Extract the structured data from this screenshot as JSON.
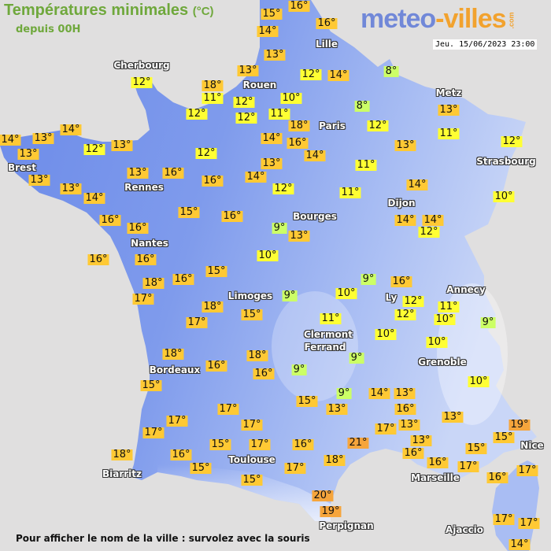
{
  "header": {
    "title": "Températures minimales",
    "unit": "(°C)",
    "subtitle": "depuis 00H",
    "datetime": "Jeu. 15/06/2023 23:00"
  },
  "logo": {
    "part1": "meteo",
    "part2": "-villes",
    "part3": ".com"
  },
  "footer": {
    "hint": "Pour afficher le nom de la ville : survolez avec la souris"
  },
  "legend_colors": {
    "8-9": "#ccff66",
    "10-12": "#ffff33",
    "13-18": "#ffc934",
    "19-21": "#f6a53c"
  },
  "map_colors": {
    "land_west": "#6b8ae9",
    "land_east": "#b4c6f5",
    "sea": "#e0dfdf"
  },
  "cities": [
    "Cherbourg",
    "Lille",
    "Rouen",
    "Paris",
    "Metz",
    "Strasbourg",
    "Brest",
    "Rennes",
    "Bourges",
    "Dijon",
    "Nantes",
    "Limoges",
    "Annecy",
    "Ly",
    "Clermont",
    "Ferrand",
    "Grenoble",
    "Bordeaux",
    "Nice",
    "Toulouse",
    "Biarritz",
    "Marseille",
    "Perpignan",
    "Ajaccio"
  ],
  "temperatures": [
    15,
    16,
    16,
    14,
    13,
    13,
    12,
    14,
    8,
    12,
    18,
    11,
    12,
    12,
    12,
    10,
    11,
    18,
    16,
    14,
    14,
    8,
    12,
    13,
    11,
    13,
    12,
    14,
    13,
    13,
    14,
    12,
    13,
    13,
    13,
    14,
    13,
    16,
    12,
    16,
    14,
    13,
    12,
    11,
    11,
    14,
    10,
    16,
    16,
    15,
    16,
    9,
    13,
    14,
    14,
    12,
    16,
    16,
    18,
    17,
    16,
    15,
    10,
    9,
    15,
    18,
    17,
    10,
    9,
    16,
    12,
    12,
    11,
    10,
    9,
    11,
    10,
    10,
    9,
    9,
    18,
    16,
    18,
    16,
    15,
    10,
    17,
    15,
    9,
    13,
    14,
    13,
    16,
    17,
    13,
    13,
    19,
    15,
    17,
    17,
    17,
    17,
    15,
    16,
    21,
    13,
    16,
    16,
    15,
    18,
    16,
    15,
    17,
    18,
    17,
    16,
    17,
    15,
    20,
    19,
    17,
    17,
    14
  ]
}
